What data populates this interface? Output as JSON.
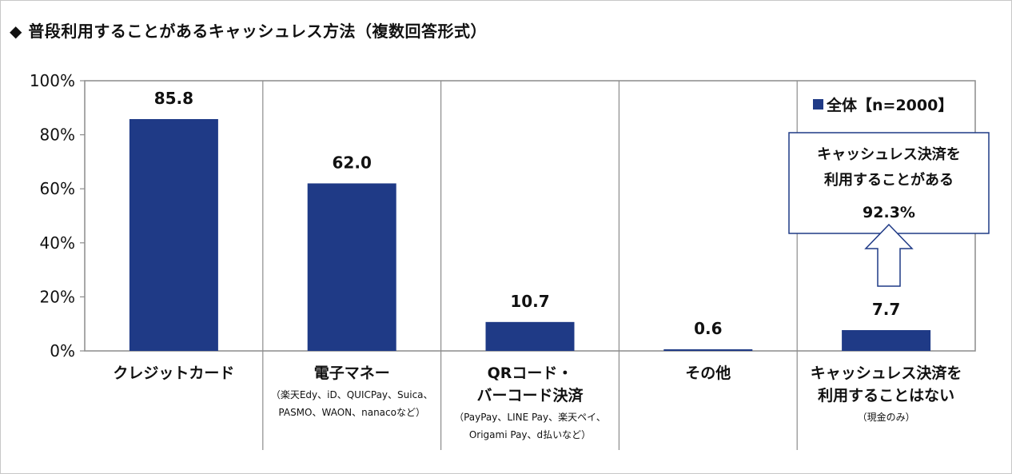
{
  "title": "◆ 普段利用することがあるキャッシュレス方法（複数回答形式）",
  "chart_data": {
    "type": "bar",
    "categories": [
      {
        "lines": [
          "クレジットカード"
        ],
        "sub": []
      },
      {
        "lines": [
          "電子マネー"
        ],
        "sub": [
          "（楽天Edy、iD、QUICPay、Suica、",
          "PASMO、WAON、nanacoなど）"
        ]
      },
      {
        "lines": [
          "QRコード・",
          "バーコード決済"
        ],
        "sub": [
          "（PayPay、LINE Pay、楽天ペイ、",
          "Origami Pay、d払いなど）"
        ]
      },
      {
        "lines": [
          "その他"
        ],
        "sub": []
      },
      {
        "lines": [
          "キャッシュレス決済を",
          "利用することはない"
        ],
        "sub": [
          "（現金のみ）"
        ]
      }
    ],
    "series": [
      {
        "name": "全体【n=2000】",
        "values": [
          85.8,
          62.0,
          10.7,
          0.6,
          7.7
        ],
        "labels": [
          "85.8",
          "62.0",
          "10.7",
          "0.6",
          "7.7"
        ]
      }
    ],
    "ylim": [
      0,
      100
    ],
    "yticks": [
      {
        "value": 0,
        "label": "0%"
      },
      {
        "value": 20,
        "label": "20%"
      },
      {
        "value": 40,
        "label": "40%"
      },
      {
        "value": 60,
        "label": "60%"
      },
      {
        "value": 80,
        "label": "80%"
      },
      {
        "value": 100,
        "label": "100%"
      }
    ],
    "legend_position": "top-right",
    "callout": {
      "lines": [
        "キャッシュレス決済を",
        "利用することがある"
      ],
      "value": "92.3%"
    },
    "colors": {
      "bar": "#1f3a86",
      "gridline": "#8c8c8c",
      "callout_border": "#1f3a86"
    }
  }
}
